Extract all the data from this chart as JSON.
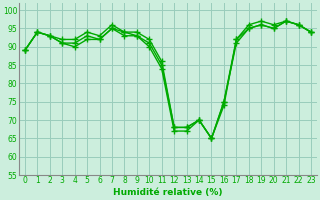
{
  "x": [
    0,
    1,
    2,
    3,
    4,
    5,
    6,
    7,
    8,
    9,
    10,
    11,
    12,
    13,
    14,
    15,
    16,
    17,
    18,
    19,
    20,
    21,
    22,
    23
  ],
  "series1": [
    89,
    94,
    93,
    91,
    90,
    92,
    92,
    95,
    93,
    93,
    90,
    84,
    67,
    67,
    70,
    65,
    75,
    91,
    95,
    96,
    95,
    97,
    96,
    94
  ],
  "series2": [
    89,
    94,
    93,
    91,
    91,
    93,
    92,
    95,
    94,
    93,
    91,
    85,
    68,
    68,
    70,
    65,
    75,
    92,
    95,
    96,
    95,
    97,
    96,
    94
  ],
  "series3": [
    89,
    94,
    93,
    92,
    92,
    94,
    93,
    96,
    94,
    94,
    92,
    86,
    68,
    68,
    70,
    65,
    74,
    92,
    96,
    97,
    96,
    97,
    96,
    94
  ],
  "line_color": "#00aa00",
  "bg_color": "#cceedd",
  "grid_color": "#99ccbb",
  "xlabel": "Humidité relative (%)",
  "ylim": [
    55,
    102
  ],
  "xlim": [
    -0.5,
    23.5
  ],
  "yticks": [
    55,
    60,
    65,
    70,
    75,
    80,
    85,
    90,
    95,
    100
  ],
  "xticks": [
    0,
    1,
    2,
    3,
    4,
    5,
    6,
    7,
    8,
    9,
    10,
    11,
    12,
    13,
    14,
    15,
    16,
    17,
    18,
    19,
    20,
    21,
    22,
    23
  ],
  "tick_fontsize": 5.5,
  "xlabel_fontsize": 6.5,
  "marker_size": 4,
  "line_width": 1.0
}
